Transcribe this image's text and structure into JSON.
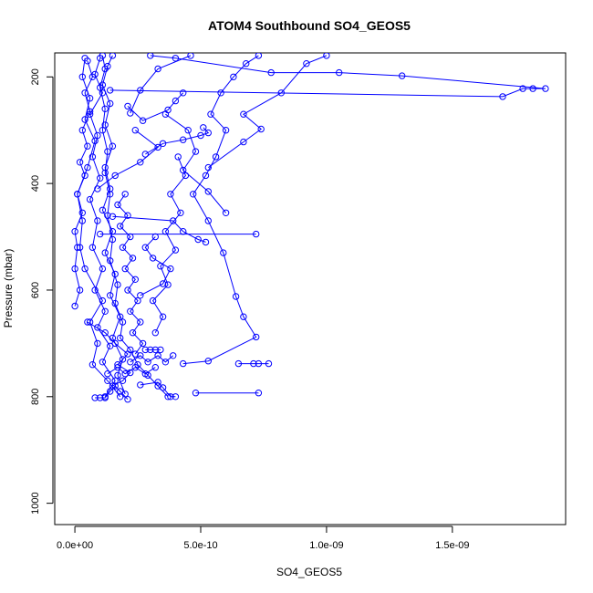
{
  "chart_data": {
    "type": "line",
    "title": "ATOM4 Southbound SO4_GEOS5",
    "xlabel": "SO4_GEOS5",
    "ylabel": "Pressure (mbar)",
    "xlim": [
      -8e-11,
      1.95e-09
    ],
    "ylim": [
      1040,
      155
    ],
    "y_reversed": true,
    "x_ticks": [
      0,
      5e-10,
      1e-09,
      1.5e-09
    ],
    "x_tick_labels": [
      "0.0e+00",
      "5.0e-10",
      "1.0e-09",
      "1.5e-09"
    ],
    "y_ticks": [
      200,
      400,
      600,
      800,
      1000
    ],
    "y_tick_labels": [
      "200",
      "400",
      "600",
      "800",
      "1000"
    ],
    "grid": false,
    "marker": "open-circle",
    "color": "#0000ff",
    "series": [
      {
        "points": [
          [
            1.8e-10,
            800
          ],
          [
            1.3e-10,
            770
          ],
          [
            7e-11,
            740
          ],
          [
            9e-11,
            700
          ],
          [
            6e-11,
            660
          ],
          [
            1.1e-10,
            620
          ],
          [
            4e-11,
            560
          ],
          [
            2e-11,
            520
          ],
          [
            3e-11,
            470
          ],
          [
            1e-11,
            420
          ],
          [
            5e-11,
            370
          ],
          [
            8e-11,
            320
          ],
          [
            4e-11,
            280
          ],
          [
            6e-11,
            240
          ],
          [
            3e-11,
            200
          ],
          [
            4e-11,
            165
          ]
        ]
      },
      {
        "points": [
          [
            1.2e-10,
            800
          ],
          [
            1.6e-10,
            770
          ],
          [
            1.1e-10,
            735
          ],
          [
            1.4e-10,
            705
          ],
          [
            9e-11,
            670
          ],
          [
            1.2e-10,
            640
          ],
          [
            8e-11,
            600
          ],
          [
            1.1e-10,
            560
          ],
          [
            7e-11,
            520
          ],
          [
            9e-11,
            470
          ],
          [
            6e-11,
            430
          ],
          [
            1e-10,
            390
          ],
          [
            7e-11,
            350
          ],
          [
            9e-11,
            310
          ],
          [
            6e-11,
            270
          ],
          [
            1.1e-10,
            230
          ],
          [
            8e-11,
            195
          ],
          [
            1e-10,
            165
          ]
        ]
      },
      {
        "points": [
          [
            2e-10,
            795
          ],
          [
            1.7e-10,
            760
          ],
          [
            1.9e-10,
            730
          ],
          [
            1.5e-10,
            690
          ],
          [
            1.8e-10,
            650
          ],
          [
            1.4e-10,
            610
          ],
          [
            1.6e-10,
            570
          ],
          [
            1.2e-10,
            530
          ],
          [
            1.5e-10,
            490
          ],
          [
            1.1e-10,
            450
          ],
          [
            1.4e-10,
            410
          ],
          [
            1.2e-10,
            370
          ],
          [
            1.5e-10,
            330
          ],
          [
            1.2e-10,
            290
          ],
          [
            1.4e-10,
            250
          ],
          [
            1.1e-10,
            215
          ],
          [
            1.3e-10,
            180
          ],
          [
            1.5e-10,
            160
          ]
        ]
      },
      {
        "points": [
          [
            3.7e-10,
            800
          ],
          [
            3.3e-10,
            780
          ],
          [
            2.9e-10,
            760
          ],
          [
            2.5e-10,
            740
          ],
          [
            2.2e-10,
            712
          ],
          [
            1.8e-10,
            690
          ],
          [
            1.9e-10,
            660
          ],
          [
            1.6e-10,
            625
          ],
          [
            1.7e-10,
            590
          ],
          [
            1.4e-10,
            545
          ],
          [
            1.5e-10,
            505
          ],
          [
            1.3e-10,
            460
          ],
          [
            1.4e-10,
            420
          ],
          [
            1.2e-10,
            380
          ],
          [
            1.3e-10,
            340
          ],
          [
            1.1e-10,
            300
          ],
          [
            1.2e-10,
            260
          ],
          [
            1e-10,
            220
          ],
          [
            1.2e-10,
            185
          ],
          [
            1.1e-10,
            160
          ]
        ]
      },
      {
        "points": [
          [
            4.8e-10,
            793
          ],
          [
            7.3e-10,
            793
          ]
        ]
      },
      {
        "points": [
          [
            2.8e-10,
            712
          ],
          [
            3e-10,
            712
          ],
          [
            3.2e-10,
            712
          ],
          [
            3.4e-10,
            712
          ]
        ]
      },
      {
        "points": [
          [
            2.6e-10,
            778
          ],
          [
            3.3e-10,
            773
          ],
          [
            3.5e-10,
            783
          ],
          [
            3.8e-10,
            800
          ],
          [
            4e-10,
            800
          ]
        ]
      },
      {
        "points": [
          [
            6.5e-10,
            738
          ],
          [
            7.1e-10,
            738
          ],
          [
            7.3e-10,
            738
          ],
          [
            7.7e-10,
            738
          ]
        ]
      },
      {
        "points": [
          [
            4.3e-10,
            738
          ],
          [
            5.3e-10,
            733
          ],
          [
            7.2e-10,
            688
          ],
          [
            6.7e-10,
            650
          ],
          [
            6.4e-10,
            612
          ],
          [
            5.9e-10,
            530
          ],
          [
            5.3e-10,
            470
          ],
          [
            4.7e-10,
            420
          ],
          [
            5.2e-10,
            385
          ],
          [
            5.6e-10,
            350
          ],
          [
            6e-10,
            300
          ],
          [
            5.4e-10,
            270
          ],
          [
            5.8e-10,
            230
          ],
          [
            6.3e-10,
            200
          ],
          [
            6.8e-10,
            175
          ],
          [
            7.3e-10,
            160
          ]
        ]
      },
      {
        "points": [
          [
            2.4e-10,
            720
          ],
          [
            2.7e-10,
            700
          ],
          [
            2.3e-10,
            680
          ],
          [
            2.6e-10,
            660
          ],
          [
            2.2e-10,
            640
          ],
          [
            2.5e-10,
            620
          ],
          [
            2.1e-10,
            600
          ],
          [
            2.4e-10,
            580
          ],
          [
            2e-10,
            560
          ],
          [
            2.3e-10,
            540
          ],
          [
            1.9e-10,
            520
          ],
          [
            2.2e-10,
            500
          ],
          [
            1.8e-10,
            480
          ],
          [
            2.1e-10,
            460
          ],
          [
            1.7e-10,
            440
          ],
          [
            2e-10,
            420
          ]
        ]
      },
      {
        "points": [
          [
            1e-10,
            495
          ],
          [
            7.2e-10,
            495
          ]
        ]
      },
      {
        "points": [
          [
            1.5e-10,
            462
          ],
          [
            3.9e-10,
            470
          ],
          [
            4.3e-10,
            490
          ],
          [
            4.9e-10,
            505
          ],
          [
            5.2e-10,
            510
          ]
        ]
      },
      {
        "points": [
          [
            1.4e-10,
            225
          ],
          [
            1.7e-09,
            237
          ],
          [
            1.78e-09,
            222
          ],
          [
            1.82e-09,
            222
          ],
          [
            1.87e-09,
            222
          ],
          [
            1.3e-09,
            198
          ],
          [
            1.05e-09,
            192
          ],
          [
            7.8e-10,
            192
          ],
          [
            4e-10,
            165
          ],
          [
            3e-10,
            160
          ]
        ]
      },
      {
        "points": [
          [
            2.8e-10,
            345
          ],
          [
            3.5e-10,
            325
          ],
          [
            4.3e-10,
            318
          ],
          [
            5e-10,
            310
          ],
          [
            5.3e-10,
            305
          ],
          [
            5.1e-10,
            295
          ]
        ]
      },
      {
        "points": [
          [
            2.1e-10,
            255
          ],
          [
            2.7e-10,
            282
          ],
          [
            3.7e-10,
            262
          ],
          [
            4e-10,
            245
          ],
          [
            4.3e-10,
            230
          ]
        ]
      },
      {
        "points": [
          [
            9e-11,
            410
          ],
          [
            1.6e-10,
            385
          ],
          [
            2.6e-10,
            360
          ],
          [
            3.3e-10,
            332
          ],
          [
            2.4e-10,
            300
          ]
        ]
      },
      {
        "points": [
          [
            5.3e-10,
            370
          ],
          [
            6.7e-10,
            322
          ],
          [
            7.4e-10,
            298
          ],
          [
            6.7e-10,
            270
          ],
          [
            8.2e-10,
            230
          ],
          [
            9.2e-10,
            175
          ],
          [
            1e-09,
            160
          ]
        ]
      },
      {
        "points": [
          [
            2.6e-10,
            610
          ],
          [
            3.5e-10,
            588
          ],
          [
            3.8e-10,
            560
          ],
          [
            3.1e-10,
            540
          ],
          [
            2.8e-10,
            520
          ],
          [
            3.2e-10,
            500
          ]
        ]
      },
      {
        "points": [
          [
            5e-11,
            660
          ],
          [
            1.2e-10,
            680
          ],
          [
            1.6e-10,
            700
          ],
          [
            2.1e-10,
            720
          ],
          [
            1.7e-10,
            740
          ],
          [
            2.2e-10,
            755
          ],
          [
            1.9e-10,
            770
          ],
          [
            1.5e-10,
            780
          ]
        ]
      },
      {
        "points": [
          [
            6e-10,
            455
          ],
          [
            5.3e-10,
            415
          ],
          [
            4.3e-10,
            375
          ],
          [
            4.8e-10,
            340
          ],
          [
            4.5e-10,
            300
          ],
          [
            3.6e-10,
            270
          ]
        ]
      },
      {
        "points": [
          [
            3.2e-10,
            680
          ],
          [
            3.5e-10,
            650
          ],
          [
            3.1e-10,
            620
          ],
          [
            3.7e-10,
            590
          ],
          [
            3.4e-10,
            555
          ],
          [
            4e-10,
            525
          ],
          [
            3.6e-10,
            490
          ],
          [
            4.2e-10,
            455
          ],
          [
            3.8e-10,
            420
          ],
          [
            4.4e-10,
            385
          ],
          [
            4.1e-10,
            350
          ]
        ]
      },
      {
        "points": [
          [
            0.0,
            630
          ],
          [
            2e-11,
            600
          ],
          [
            0.0,
            560
          ],
          [
            1e-11,
            520
          ],
          [
            0.0,
            490
          ],
          [
            3e-11,
            455
          ],
          [
            1e-11,
            420
          ],
          [
            4e-11,
            385
          ],
          [
            2e-11,
            360
          ],
          [
            5e-11,
            330
          ],
          [
            3e-11,
            300
          ],
          [
            6e-11,
            265
          ],
          [
            4e-11,
            230
          ],
          [
            7e-11,
            200
          ],
          [
            5e-11,
            170
          ]
        ]
      },
      {
        "points": [
          [
            8e-11,
            802
          ],
          [
            1e-10,
            802
          ],
          [
            1.2e-10,
            802
          ],
          [
            1.4e-10,
            790
          ],
          [
            1.6e-10,
            780
          ],
          [
            1.8e-10,
            790
          ],
          [
            2.1e-10,
            805
          ]
        ]
      },
      {
        "points": [
          [
            2.2e-10,
            735
          ],
          [
            2.6e-10,
            723
          ],
          [
            2.9e-10,
            735
          ],
          [
            3.3e-10,
            723
          ],
          [
            3.6e-10,
            735
          ],
          [
            3.9e-10,
            723
          ]
        ]
      },
      {
        "points": [
          [
            1.3e-10,
            757
          ],
          [
            1.7e-10,
            745
          ],
          [
            2e-10,
            757
          ],
          [
            2.4e-10,
            745
          ],
          [
            2.8e-10,
            757
          ],
          [
            3.2e-10,
            745
          ]
        ]
      },
      {
        "points": [
          [
            2.2e-10,
            268
          ],
          [
            2.6e-10,
            225
          ],
          [
            3.3e-10,
            185
          ],
          [
            4.6e-10,
            160
          ]
        ]
      }
    ]
  }
}
